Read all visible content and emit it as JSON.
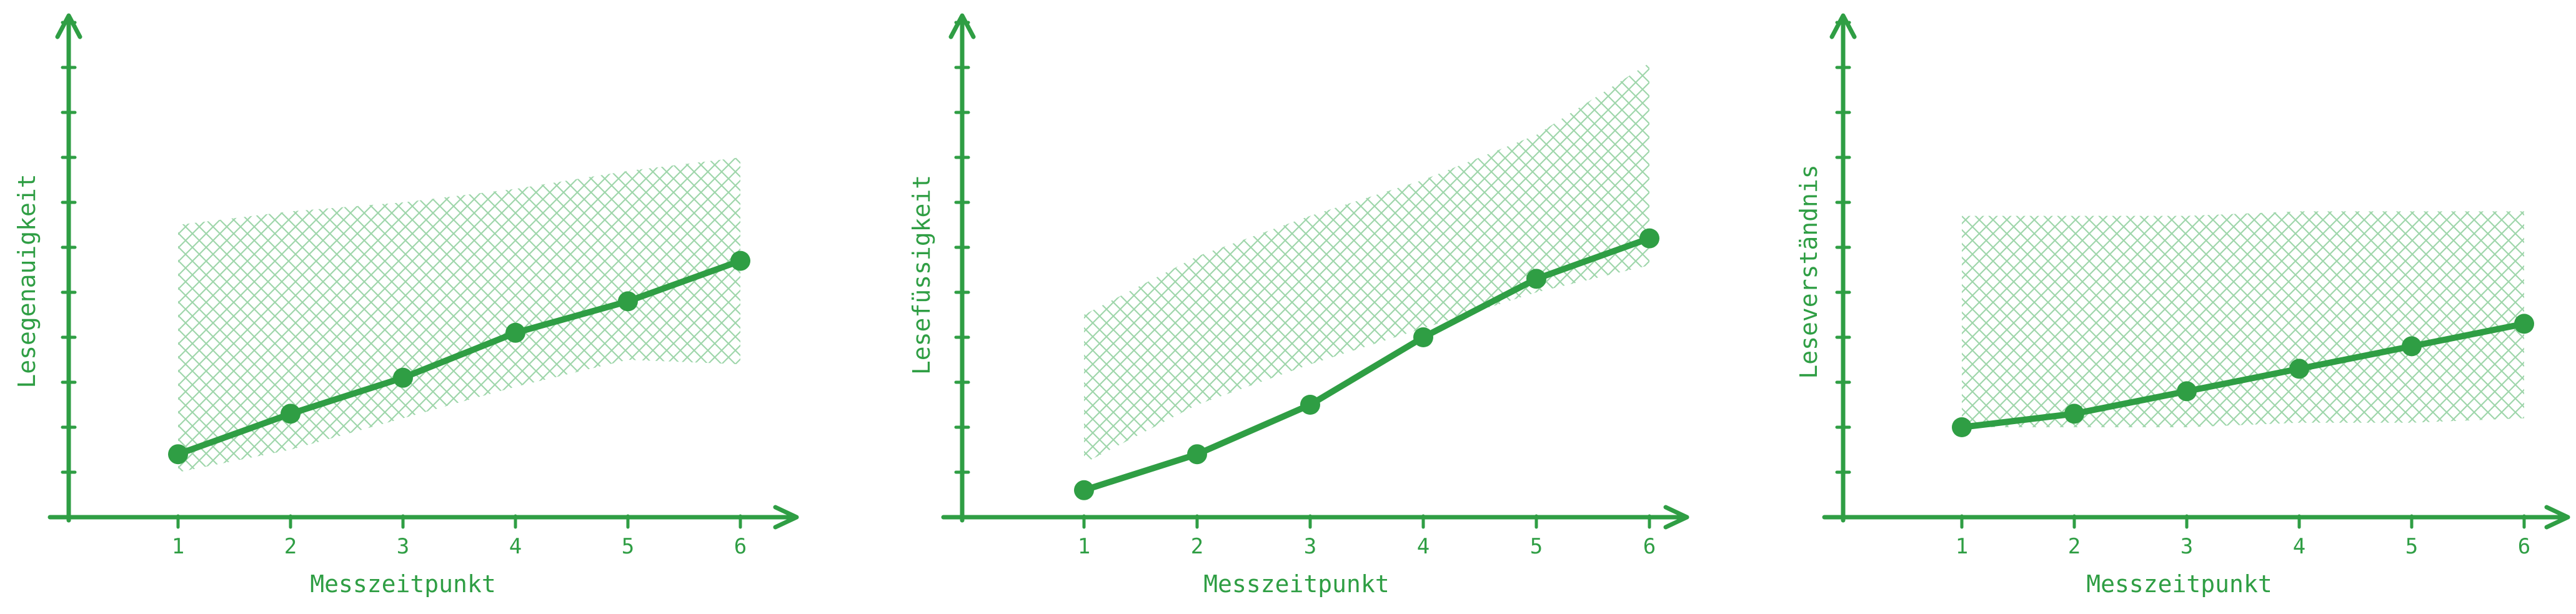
{
  "colors": {
    "accent": "#2f9e44",
    "band": "#b2e0bd"
  },
  "chart_data": [
    {
      "type": "line",
      "title": "",
      "xlabel": "Messzeitpunkt",
      "ylabel": "Lesegenauigkeit",
      "categories": [
        "1",
        "2",
        "3",
        "4",
        "5",
        "6"
      ],
      "values": [
        1.4,
        2.3,
        3.1,
        4.1,
        4.8,
        5.7
      ],
      "band": {
        "lower": [
          1.0,
          1.5,
          2.2,
          2.9,
          3.5,
          3.4
        ],
        "upper": [
          6.5,
          6.8,
          7.0,
          7.3,
          7.7,
          8.0
        ]
      },
      "ylim": [
        0,
        11
      ],
      "yticks": 11,
      "grid": false
    },
    {
      "type": "line",
      "title": "",
      "xlabel": "Messzeitpunkt",
      "ylabel": "Lesefüssigkeit",
      "categories": [
        "1",
        "2",
        "3",
        "4",
        "5",
        "6"
      ],
      "values": [
        0.6,
        1.4,
        2.5,
        4.0,
        5.3,
        6.2
      ],
      "band": {
        "lower": [
          1.2,
          2.5,
          3.4,
          4.2,
          5.0,
          5.6
        ],
        "upper": [
          4.5,
          5.8,
          6.7,
          7.5,
          8.5,
          10.1
        ]
      },
      "ylim": [
        0,
        11
      ],
      "yticks": 11,
      "grid": false
    },
    {
      "type": "line",
      "title": "",
      "xlabel": "Messzeitpunkt",
      "ylabel": "Leseverständnis",
      "categories": [
        "1",
        "2",
        "3",
        "4",
        "5",
        "6"
      ],
      "values": [
        2.0,
        2.3,
        2.8,
        3.3,
        3.8,
        4.3
      ],
      "band": {
        "lower": [
          2.0,
          2.0,
          2.0,
          2.1,
          2.1,
          2.2
        ],
        "upper": [
          6.7,
          6.7,
          6.7,
          6.8,
          6.8,
          6.8
        ]
      },
      "ylim": [
        0,
        11
      ],
      "yticks": 11,
      "grid": false
    }
  ]
}
